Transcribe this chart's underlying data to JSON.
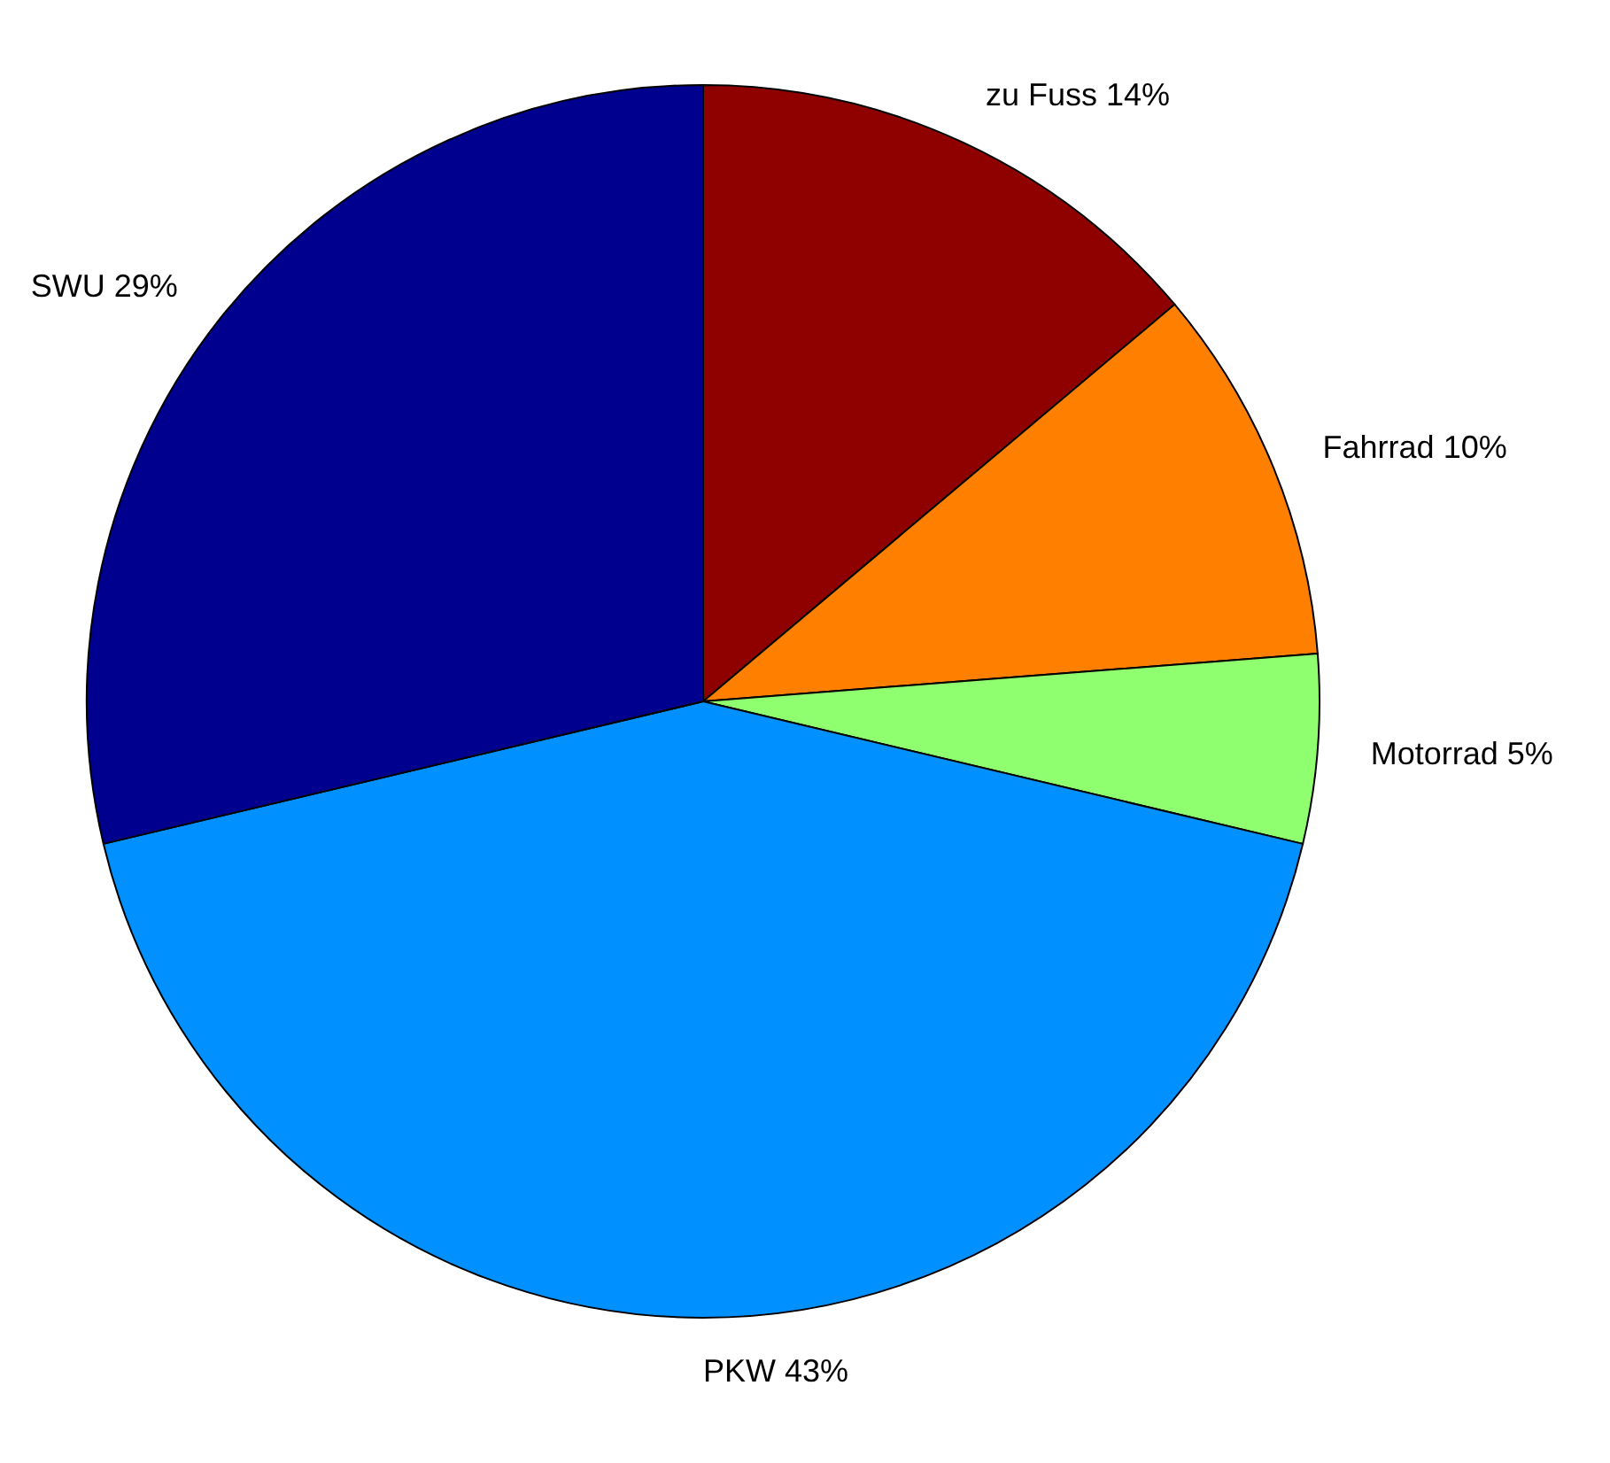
{
  "chart_data": {
    "type": "pie",
    "categories": [
      "zu Fuss",
      "Fahrrad",
      "Motorrad",
      "PKW",
      "SWU"
    ],
    "values": [
      14,
      10,
      5,
      43,
      29
    ],
    "value_labels": [
      "14%",
      "10%",
      "5%",
      "43%",
      "29%"
    ],
    "colors": [
      "#8f0000",
      "#ff8000",
      "#8fff70",
      "#0090ff",
      "#00008f"
    ]
  }
}
